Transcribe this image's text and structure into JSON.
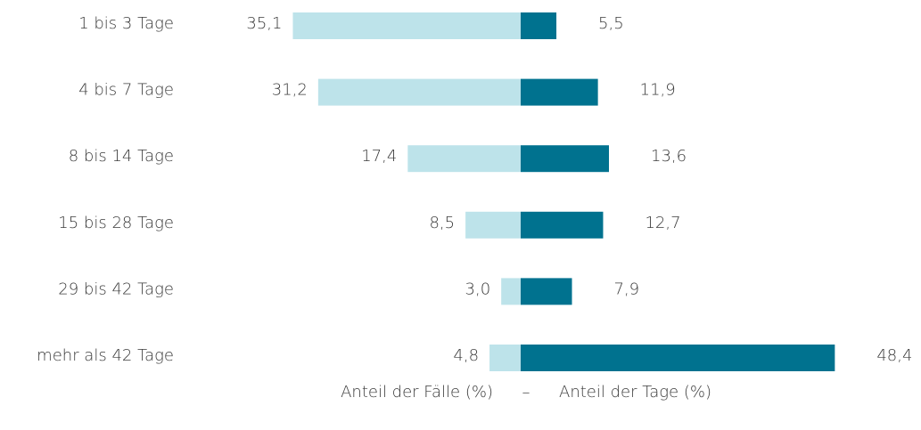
{
  "chart_data": {
    "type": "diverging_bar",
    "orientation": "horizontal",
    "categories": [
      "1 bis 3 Tage",
      "4 bis 7 Tage",
      "8 bis 14 Tage",
      "15 bis 28 Tage",
      "29 bis 42 Tage",
      "mehr als 42 Tage"
    ],
    "series": [
      {
        "name": "Anteil der Fälle (%)",
        "color": "#bde3ea",
        "side": "left",
        "values": [
          35.1,
          31.2,
          17.4,
          8.5,
          3.0,
          4.8
        ],
        "value_labels": [
          "35,1",
          "31,2",
          "17,4",
          "8,5",
          "3,0",
          "4,8"
        ]
      },
      {
        "name": "Anteil der Tage (%)",
        "color": "#00728f",
        "side": "right",
        "values": [
          5.5,
          11.9,
          13.6,
          12.7,
          7.9,
          48.4
        ],
        "value_labels": [
          "5,5",
          "11,9",
          "13,6",
          "12,7",
          "7,9",
          "48,4"
        ]
      }
    ],
    "legend_separator": "–"
  }
}
